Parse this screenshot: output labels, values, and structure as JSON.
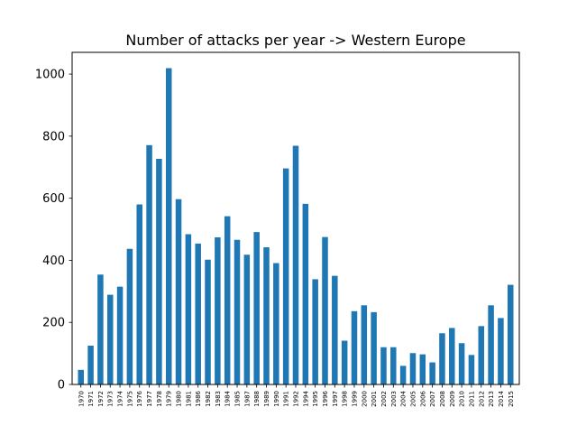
{
  "chart_data": {
    "type": "bar",
    "title": "Number of attacks per year -> Western Europe",
    "xlabel": "",
    "ylabel": "",
    "ylim": [
      0,
      1070
    ],
    "yticks": [
      0,
      200,
      400,
      600,
      800,
      1000
    ],
    "grid": false,
    "bar_color": "#1f77b4",
    "categories": [
      "1970",
      "1971",
      "1972",
      "1973",
      "1974",
      "1975",
      "1976",
      "1977",
      "1978",
      "1979",
      "1980",
      "1981",
      "1986",
      "1982",
      "1983",
      "1984",
      "1985",
      "1987",
      "1988",
      "1989",
      "1990",
      "1991",
      "1992",
      "1994",
      "1995",
      "1996",
      "1997",
      "1998",
      "1999",
      "2000",
      "2001",
      "2002",
      "2003",
      "2004",
      "2005",
      "2006",
      "2007",
      "2008",
      "2009",
      "2010",
      "2011",
      "2012",
      "2013",
      "2014",
      "2015"
    ],
    "values": [
      47,
      125,
      354,
      289,
      315,
      437,
      580,
      771,
      727,
      1019,
      597,
      484,
      454,
      402,
      474,
      542,
      466,
      418,
      491,
      442,
      391,
      696,
      769,
      582,
      339,
      475,
      350,
      141,
      236,
      255,
      233,
      120,
      120,
      60,
      101,
      97,
      71,
      165,
      182,
      133,
      95,
      188,
      255,
      214,
      321
    ]
  }
}
